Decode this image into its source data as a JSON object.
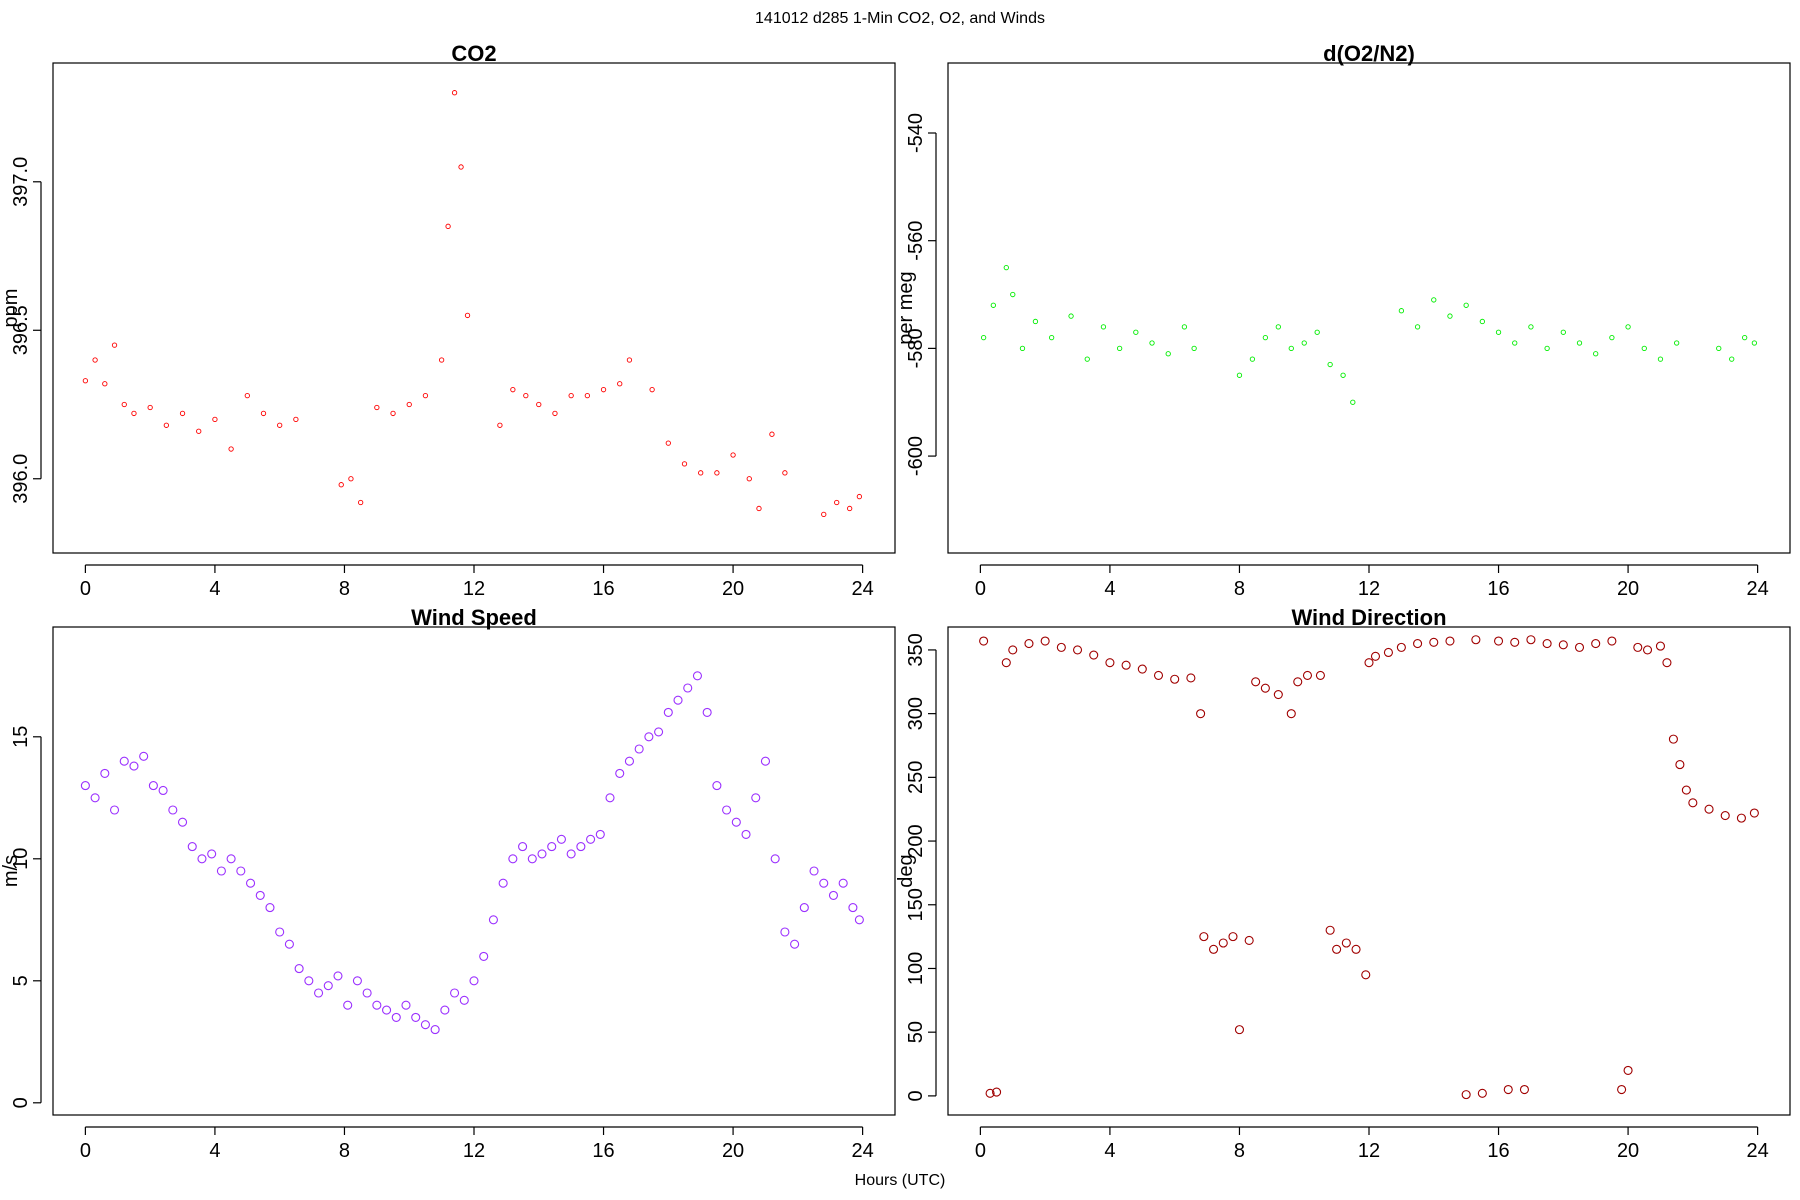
{
  "figure": {
    "title": "141012   d285   1-Min CO2, O2, and Winds",
    "xlabel": "Hours (UTC)"
  },
  "chart_data": [
    {
      "type": "scatter",
      "title": "CO2",
      "ylabel": "ppm",
      "xlabel": "",
      "color": "#ff0000",
      "marker_size": "small",
      "xlim": [
        -1,
        25
      ],
      "ylim": [
        395.75,
        397.4
      ],
      "xticks": [
        0,
        4,
        8,
        12,
        16,
        20,
        24
      ],
      "yticks": [
        396.0,
        396.5,
        397.0
      ],
      "ytick_labels": [
        "396.0",
        "396.5",
        "397.0"
      ],
      "x": [
        0.0,
        0.3,
        0.6,
        0.9,
        1.2,
        1.5,
        2.0,
        2.5,
        3.0,
        3.5,
        4.0,
        4.5,
        5.0,
        5.5,
        6.0,
        6.5,
        7.9,
        8.2,
        8.5,
        9.0,
        9.5,
        10.0,
        10.5,
        11.0,
        11.2,
        11.4,
        11.6,
        11.8,
        12.8,
        13.2,
        13.6,
        14.0,
        14.5,
        15.0,
        15.5,
        16.0,
        16.5,
        16.8,
        17.5,
        18.0,
        18.5,
        19.0,
        19.5,
        20.0,
        20.5,
        20.8,
        21.2,
        21.6,
        22.8,
        23.2,
        23.6,
        23.9
      ],
      "y": [
        396.33,
        396.4,
        396.32,
        396.45,
        396.25,
        396.22,
        396.24,
        396.18,
        396.22,
        396.16,
        396.2,
        396.1,
        396.28,
        396.22,
        396.18,
        396.2,
        395.98,
        396.0,
        395.92,
        396.24,
        396.22,
        396.25,
        396.28,
        396.4,
        396.85,
        397.3,
        397.05,
        396.55,
        396.18,
        396.3,
        396.28,
        396.25,
        396.22,
        396.28,
        396.28,
        396.3,
        396.32,
        396.4,
        396.3,
        396.12,
        396.05,
        396.02,
        396.02,
        396.08,
        396.0,
        395.9,
        396.15,
        396.02,
        395.88,
        395.92,
        395.9,
        395.94
      ]
    },
    {
      "type": "scatter",
      "title": "d(O2/N2)",
      "ylabel": "per meg",
      "xlabel": "",
      "color": "#00ee00",
      "marker_size": "small",
      "xlim": [
        -1,
        25
      ],
      "ylim": [
        -618,
        -527
      ],
      "xticks": [
        0,
        4,
        8,
        12,
        16,
        20,
        24
      ],
      "yticks": [
        -600,
        -580,
        -560,
        -540
      ],
      "ytick_labels": [
        "-600",
        "-580",
        "-560",
        "-540"
      ],
      "x": [
        0.1,
        0.4,
        0.8,
        1.0,
        1.3,
        1.7,
        2.2,
        2.8,
        3.3,
        3.8,
        4.3,
        4.8,
        5.3,
        5.8,
        6.3,
        6.6,
        8.0,
        8.4,
        8.8,
        9.2,
        9.6,
        10.0,
        10.4,
        10.8,
        11.2,
        11.5,
        13.0,
        13.5,
        14.0,
        14.5,
        15.0,
        15.5,
        16.0,
        16.5,
        17.0,
        17.5,
        18.0,
        18.5,
        19.0,
        19.5,
        20.0,
        20.5,
        21.0,
        21.5,
        22.8,
        23.2,
        23.6,
        23.9
      ],
      "y": [
        -578,
        -572,
        -565,
        -570,
        -580,
        -575,
        -578,
        -574,
        -582,
        -576,
        -580,
        -577,
        -579,
        -581,
        -576,
        -580,
        -585,
        -582,
        -578,
        -576,
        -580,
        -579,
        -577,
        -583,
        -585,
        -590,
        -573,
        -576,
        -571,
        -574,
        -572,
        -575,
        -577,
        -579,
        -576,
        -580,
        -577,
        -579,
        -581,
        -578,
        -576,
        -580,
        -582,
        -579,
        -580,
        -582,
        -578,
        -579
      ]
    },
    {
      "type": "scatter",
      "title": "Wind Speed",
      "ylabel": "m/s",
      "xlabel": "",
      "color": "#9b30ff",
      "marker_size": "large",
      "xlim": [
        -1,
        25
      ],
      "ylim": [
        -0.5,
        19.5
      ],
      "xticks": [
        0,
        4,
        8,
        12,
        16,
        20,
        24
      ],
      "yticks": [
        0,
        5,
        10,
        15
      ],
      "ytick_labels": [
        "0",
        "5",
        "10",
        "15"
      ],
      "x": [
        0.0,
        0.3,
        0.6,
        0.9,
        1.2,
        1.5,
        1.8,
        2.1,
        2.4,
        2.7,
        3.0,
        3.3,
        3.6,
        3.9,
        4.2,
        4.5,
        4.8,
        5.1,
        5.4,
        5.7,
        6.0,
        6.3,
        6.6,
        6.9,
        7.2,
        7.5,
        7.8,
        8.1,
        8.4,
        8.7,
        9.0,
        9.3,
        9.6,
        9.9,
        10.2,
        10.5,
        10.8,
        11.1,
        11.4,
        11.7,
        12.0,
        12.3,
        12.6,
        12.9,
        13.2,
        13.5,
        13.8,
        14.1,
        14.4,
        14.7,
        15.0,
        15.3,
        15.6,
        15.9,
        16.2,
        16.5,
        16.8,
        17.1,
        17.4,
        17.7,
        18.0,
        18.3,
        18.6,
        18.9,
        19.2,
        19.5,
        19.8,
        20.1,
        20.4,
        20.7,
        21.0,
        21.3,
        21.6,
        21.9,
        22.2,
        22.5,
        22.8,
        23.1,
        23.4,
        23.7,
        23.9
      ],
      "y": [
        13.0,
        12.5,
        13.5,
        12.0,
        14.0,
        13.8,
        14.2,
        13.0,
        12.8,
        12.0,
        11.5,
        10.5,
        10.0,
        10.2,
        9.5,
        10.0,
        9.5,
        9.0,
        8.5,
        8.0,
        7.0,
        6.5,
        5.5,
        5.0,
        4.5,
        4.8,
        5.2,
        4.0,
        5.0,
        4.5,
        4.0,
        3.8,
        3.5,
        4.0,
        3.5,
        3.2,
        3.0,
        3.8,
        4.5,
        4.2,
        5.0,
        6.0,
        7.5,
        9.0,
        10.0,
        10.5,
        10.0,
        10.2,
        10.5,
        10.8,
        10.2,
        10.5,
        10.8,
        11.0,
        12.5,
        13.5,
        14.0,
        14.5,
        15.0,
        15.2,
        16.0,
        16.5,
        17.0,
        17.5,
        16.0,
        13.0,
        12.0,
        11.5,
        11.0,
        12.5,
        14.0,
        10.0,
        7.0,
        6.5,
        8.0,
        9.5,
        9.0,
        8.5,
        9.0,
        8.0,
        7.5
      ]
    },
    {
      "type": "scatter",
      "title": "Wind Direction",
      "ylabel": "deg",
      "xlabel": "",
      "color": "#a00000",
      "marker_size": "large",
      "xlim": [
        -1,
        25
      ],
      "ylim": [
        -15,
        368
      ],
      "xticks": [
        0,
        4,
        8,
        12,
        16,
        20,
        24
      ],
      "yticks": [
        0,
        50,
        100,
        150,
        200,
        250,
        300,
        350
      ],
      "ytick_labels": [
        "0",
        "50",
        "100",
        "150",
        "200",
        "250",
        "300",
        "350"
      ],
      "x": [
        0.1,
        0.3,
        0.5,
        0.8,
        1.0,
        1.5,
        2.0,
        2.5,
        3.0,
        3.5,
        4.0,
        4.5,
        5.0,
        5.5,
        6.0,
        6.5,
        6.8,
        6.9,
        7.2,
        7.5,
        7.8,
        8.0,
        8.3,
        8.5,
        8.8,
        9.2,
        9.6,
        9.8,
        10.1,
        10.5,
        10.8,
        11.0,
        11.3,
        11.6,
        11.9,
        12.0,
        12.2,
        12.6,
        13.0,
        13.5,
        14.0,
        14.5,
        15.0,
        15.3,
        15.5,
        16.0,
        16.3,
        16.5,
        16.8,
        17.0,
        17.5,
        18.0,
        18.5,
        19.0,
        19.5,
        19.8,
        20.0,
        20.3,
        20.6,
        21.0,
        21.2,
        21.4,
        21.6,
        21.8,
        22.0,
        22.5,
        23.0,
        23.5,
        23.9
      ],
      "y": [
        357,
        2,
        3,
        340,
        350,
        355,
        357,
        352,
        350,
        346,
        340,
        338,
        335,
        330,
        327,
        328,
        300,
        125,
        115,
        120,
        125,
        52,
        122,
        325,
        320,
        315,
        300,
        325,
        330,
        330,
        130,
        115,
        120,
        115,
        95,
        340,
        345,
        348,
        352,
        355,
        356,
        357,
        1,
        358,
        2,
        357,
        5,
        356,
        5,
        358,
        355,
        354,
        352,
        355,
        357,
        5,
        20,
        352,
        350,
        353,
        340,
        280,
        260,
        240,
        230,
        225,
        220,
        218,
        222
      ]
    }
  ]
}
